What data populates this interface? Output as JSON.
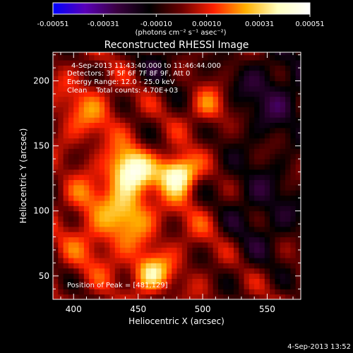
{
  "chart_data": {
    "type": "heatmap",
    "title": "Reconstructed RHESSI Image",
    "xlabel": "Heliocentric X (arcsec)",
    "ylabel": "Heliocentric Y (arcsec)",
    "xlim": [
      384,
      576
    ],
    "ylim": [
      32,
      222
    ],
    "x_ticks": [
      400,
      450,
      500,
      550
    ],
    "y_ticks": [
      50,
      100,
      150,
      200
    ],
    "colorbar": {
      "label": "(photons cm⁻² s⁻¹ asec⁻²)",
      "range": [
        -0.00051,
        0.00051
      ],
      "tick_values": [
        -0.00051,
        -0.00031,
        -0.0001,
        0.0001,
        0.00031,
        0.00051
      ],
      "tick_labels": [
        "-0.00051",
        "-0.00031",
        "-0.00010",
        "0.00010",
        "0.00031",
        "0.00051"
      ],
      "colors": [
        "#0000ff",
        "#5a00b8",
        "#3a0040",
        "#000000",
        "#6a0000",
        "#ff2000",
        "#ffb000",
        "#ffffc0",
        "#ffffff"
      ]
    },
    "annotations": [
      "4-Sep-2013 11:43:40.000 to 11:46:44.000",
      "Detectors: 3F 5F 6F 7F 8F 9F, Att 0",
      "Energy Range: 12.0 - 25.0 keV",
      "Clean    Total counts: 4.70E+03"
    ],
    "peak_label": "Position of Peak = [481,129]",
    "peak": [
      481,
      129
    ],
    "sources": [
      {
        "x": 481,
        "y": 129,
        "amplitude": 0.00051,
        "sigma": 10
      },
      {
        "x": 443,
        "y": 131,
        "amplitude": 0.00046,
        "sigma": 12
      },
      {
        "x": 444,
        "y": 100,
        "amplitude": 0.00024,
        "sigma": 14
      },
      {
        "x": 460,
        "y": 52,
        "amplitude": 0.00034,
        "sigma": 10
      },
      {
        "x": 505,
        "y": 180,
        "amplitude": 0.0002,
        "sigma": 10
      },
      {
        "x": 410,
        "y": 175,
        "amplitude": 0.00016,
        "sigma": 18
      },
      {
        "x": 420,
        "y": 78,
        "amplitude": 0.00015,
        "sigma": 20
      },
      {
        "x": 500,
        "y": 90,
        "amplitude": 0.00012,
        "sigma": 22
      },
      {
        "x": 408,
        "y": 112,
        "amplitude": 0.00014,
        "sigma": 10
      },
      {
        "x": 540,
        "y": 100,
        "amplitude": -0.00018,
        "sigma": 30
      },
      {
        "x": 555,
        "y": 190,
        "amplitude": -0.0002,
        "sigma": 25
      },
      {
        "x": 470,
        "y": 215,
        "amplitude": -0.00012,
        "sigma": 16
      }
    ]
  },
  "timestamp": "4-Sep-2013 13:52"
}
